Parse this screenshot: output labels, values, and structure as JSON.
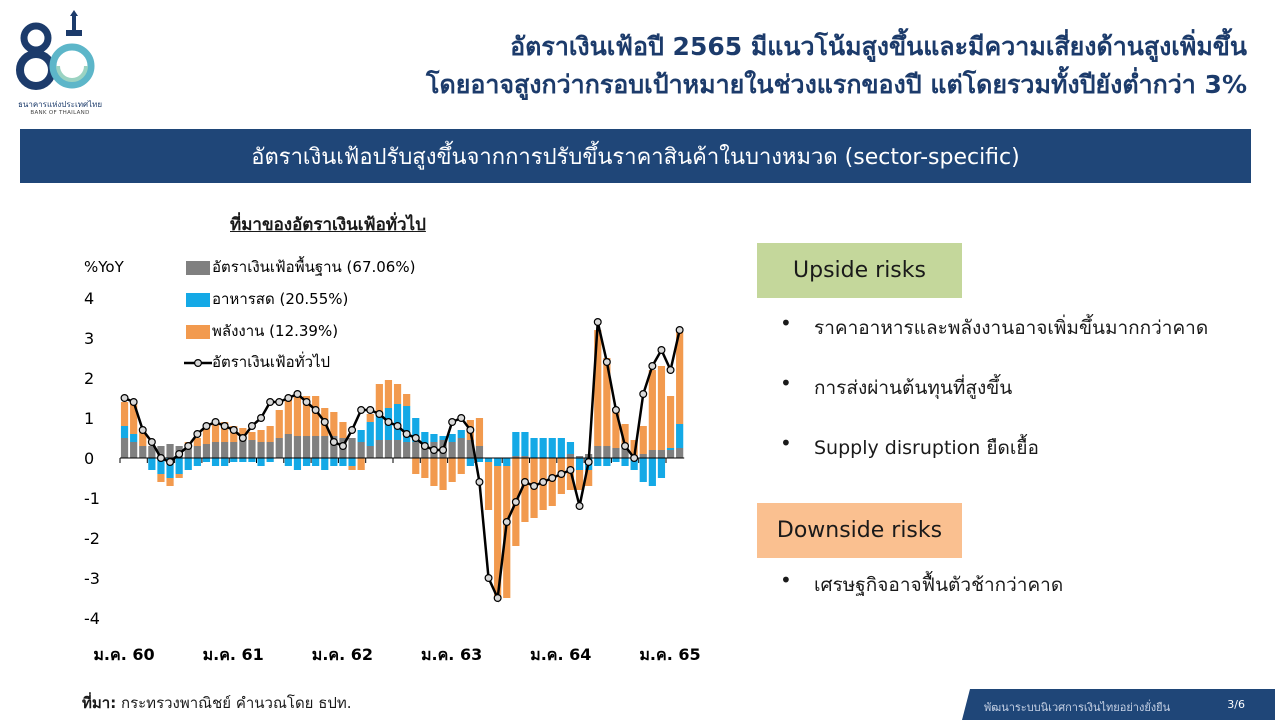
{
  "logo": {
    "line1": "ธนาคารแห่งประเทศไทย",
    "line2": "BANK OF THAILAND",
    "emblem": "80-anniversary-emblem"
  },
  "header": {
    "title_line1": "อัตราเงินเฟ้อปี 2565 มีแนวโน้มสูงขึ้นและมีความเสี่ยงด้านสูงเพิ่มขึ้น",
    "title_line2": "โดยอาจสูงกว่ากรอบเป้าหมายในช่วงแรกของปี แต่โดยรวมทั้งปียังต่ำกว่า 3%"
  },
  "banner": {
    "text": "อัตราเงินเฟ้อปรับสูงขึ้นจากการปรับขึ้นราคาสินค้าในบางหมวด (sector-specific)"
  },
  "colors": {
    "core": "#808080",
    "food": "#14a9e6",
    "energy": "#f29a4e",
    "headline": "#000000",
    "banner": "#1f4678",
    "upside_box": "#c4d79b",
    "downside_box": "#fac090"
  },
  "chart_data": {
    "type": "bar",
    "stacked": true,
    "title": "ที่มาของอัตราเงินเฟ้อทั่วไป",
    "ylabel": "%YoY",
    "ylim": [
      -4,
      4
    ],
    "yticks": [
      4,
      3,
      2,
      1,
      0,
      -1,
      -2,
      -3,
      -4
    ],
    "xtick_labels": [
      "ม.ค. 60",
      "ม.ค. 61",
      "ม.ค. 62",
      "ม.ค. 63",
      "ม.ค. 64",
      "ม.ค. 65"
    ],
    "xtick_index": [
      0,
      12,
      24,
      36,
      48,
      60
    ],
    "legend_position": "top-left",
    "series": [
      {
        "name": "อัตราเงินเฟ้อพื้นฐาน (67.06%)",
        "kind": "bar",
        "values": [
          0.5,
          0.4,
          0.3,
          0.3,
          0.3,
          0.35,
          0.3,
          0.3,
          0.3,
          0.35,
          0.4,
          0.4,
          0.4,
          0.45,
          0.45,
          0.4,
          0.4,
          0.5,
          0.6,
          0.55,
          0.55,
          0.55,
          0.55,
          0.55,
          0.5,
          0.5,
          0.4,
          0.3,
          0.45,
          0.45,
          0.45,
          0.4,
          0.4,
          0.35,
          0.4,
          0.45,
          0.4,
          0.5,
          0.45,
          0.3,
          0.0,
          0.0,
          0.0,
          0.05,
          0.05,
          0.0,
          0.0,
          0.0,
          0.0,
          0.1,
          0.05,
          0.1,
          0.3,
          0.3,
          0.25,
          0.25,
          0.05,
          0.1,
          0.2,
          0.2,
          0.2,
          0.25
        ]
      },
      {
        "name": "อาหารสด (20.55%)",
        "kind": "bar",
        "values": [
          0.3,
          0.2,
          0.0,
          -0.3,
          -0.4,
          -0.5,
          -0.4,
          -0.3,
          -0.2,
          -0.1,
          -0.2,
          -0.2,
          -0.1,
          -0.1,
          -0.1,
          -0.2,
          -0.1,
          0.0,
          -0.2,
          -0.3,
          -0.2,
          -0.2,
          -0.3,
          -0.2,
          -0.2,
          -0.2,
          0.3,
          0.6,
          0.7,
          0.8,
          0.9,
          0.9,
          0.6,
          0.3,
          0.2,
          0.1,
          0.2,
          0.2,
          -0.2,
          -0.1,
          -0.1,
          -0.2,
          -0.2,
          0.6,
          0.6,
          0.5,
          0.5,
          0.5,
          0.5,
          0.3,
          -0.3,
          -0.3,
          -0.2,
          -0.2,
          -0.1,
          -0.2,
          -0.3,
          -0.6,
          -0.7,
          -0.5,
          0.05,
          0.6
        ]
      },
      {
        "name": "พลังงาน (12.39%)",
        "kind": "bar",
        "values": [
          0.6,
          0.8,
          0.4,
          0.0,
          -0.2,
          -0.2,
          -0.1,
          0.1,
          0.2,
          0.4,
          0.5,
          0.5,
          0.4,
          0.3,
          0.2,
          0.3,
          0.4,
          0.7,
          0.9,
          1.1,
          1.0,
          1.0,
          0.7,
          0.6,
          0.4,
          -0.1,
          -0.3,
          0.2,
          0.7,
          0.7,
          0.5,
          0.3,
          -0.4,
          -0.5,
          -0.7,
          -0.8,
          -0.6,
          -0.4,
          0.5,
          0.7,
          -1.2,
          -3.3,
          -3.3,
          -2.2,
          -1.6,
          -1.5,
          -1.3,
          -1.2,
          -0.9,
          -0.8,
          -0.5,
          -0.4,
          2.9,
          2.2,
          1.0,
          0.6,
          0.4,
          0.7,
          2.0,
          2.1,
          1.3,
          2.3
        ]
      },
      {
        "name": "อัตราเงินเฟ้อทั่วไป",
        "kind": "line",
        "values": [
          1.5,
          1.4,
          0.7,
          0.4,
          0.0,
          -0.1,
          0.1,
          0.3,
          0.6,
          0.8,
          0.9,
          0.8,
          0.7,
          0.5,
          0.8,
          1.0,
          1.4,
          1.4,
          1.5,
          1.6,
          1.4,
          1.2,
          0.9,
          0.4,
          0.3,
          0.7,
          1.2,
          1.2,
          1.1,
          0.9,
          0.8,
          0.6,
          0.5,
          0.3,
          0.2,
          0.2,
          0.9,
          1.0,
          0.7,
          -0.6,
          -3.0,
          -3.5,
          -1.6,
          -1.1,
          -0.6,
          -0.7,
          -0.6,
          -0.5,
          -0.4,
          -0.3,
          -1.2,
          -0.1,
          3.4,
          2.4,
          1.2,
          0.3,
          0.0,
          1.6,
          2.3,
          2.7,
          2.2,
          3.2
        ]
      }
    ]
  },
  "upside": {
    "heading": "Upside risks",
    "items": [
      "ราคาอาหารและพลังงานอาจเพิ่มขึ้นมากกว่าคาด",
      "การส่งผ่านต้นทุนที่สูงขึ้น",
      "Supply disruption ยืดเยื้อ"
    ]
  },
  "downside": {
    "heading": "Downside risks",
    "items": [
      "เศรษฐกิจอาจฟื้นตัวช้ากว่าคาด"
    ]
  },
  "source": {
    "label": "ที่มา:",
    "text": "กระทรวงพาณิชย์ คำนวณโดย ธปท."
  },
  "footer": {
    "tagline": "พัฒนาระบบนิเวศการเงินไทยอย่างยั่งยืน",
    "page": "3/6"
  }
}
